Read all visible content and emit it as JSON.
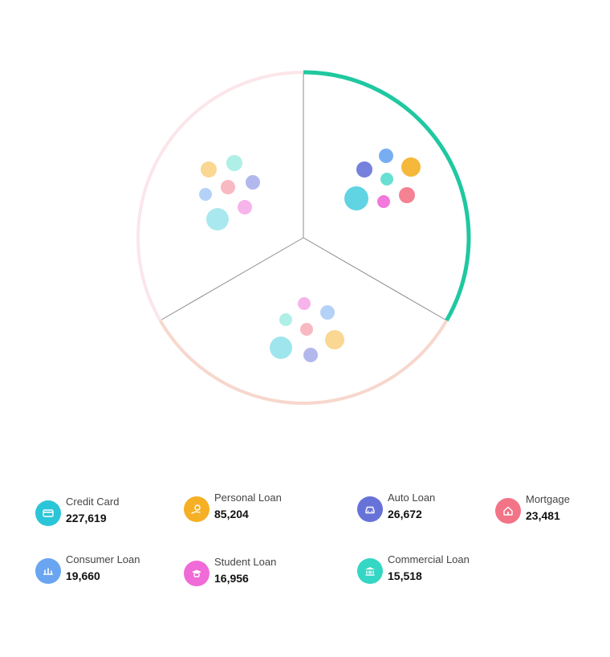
{
  "chart_data": {
    "type": "bubble-cluster",
    "series": [
      {
        "key": "credit_card",
        "name": "Credit Card",
        "value": 227619,
        "color": "#2bc5d8",
        "icon": "credit-card-icon"
      },
      {
        "key": "personal_loan",
        "name": "Personal Loan",
        "value": 85204,
        "color": "#f5b025",
        "icon": "personal-loan-icon"
      },
      {
        "key": "auto_loan",
        "name": "Auto Loan",
        "value": 26672,
        "color": "#6772d9",
        "icon": "car-icon"
      },
      {
        "key": "mortgage",
        "name": "Mortgage",
        "value": 23481,
        "color": "#f27486",
        "icon": "house-icon"
      },
      {
        "key": "consumer_loan",
        "name": "Consumer Loan",
        "value": 19660,
        "color": "#69a5f0",
        "icon": "consumer-loan-icon"
      },
      {
        "key": "student_loan",
        "name": "Student Loan",
        "value": 16956,
        "color": "#f06ad8",
        "icon": "student-icon"
      },
      {
        "key": "commercial_loan",
        "name": "Commercial Loan",
        "value": 15518,
        "color": "#34d6c4",
        "icon": "bank-icon"
      }
    ],
    "sectors": [
      {
        "arc_color": "#1fc8a0",
        "arc_opacity": 1.0,
        "bubbles": [
          {
            "series": "credit_card",
            "opacity": 0.75,
            "r": 15
          },
          {
            "series": "personal_loan",
            "opacity": 0.9,
            "r": 12
          },
          {
            "series": "auto_loan",
            "opacity": 0.9,
            "r": 10
          },
          {
            "series": "mortgage",
            "opacity": 0.9,
            "r": 10
          },
          {
            "series": "consumer_loan",
            "opacity": 0.9,
            "r": 9
          },
          {
            "series": "student_loan",
            "opacity": 0.9,
            "r": 8
          },
          {
            "series": "commercial_loan",
            "opacity": 0.75,
            "r": 8
          }
        ]
      },
      {
        "arc_color": "#f7d7cd",
        "arc_opacity": 1.0,
        "bubbles": [
          {
            "series": "credit_card",
            "opacity": 0.45,
            "r": 14
          },
          {
            "series": "personal_loan",
            "opacity": 0.5,
            "r": 12
          },
          {
            "series": "auto_loan",
            "opacity": 0.5,
            "r": 9
          },
          {
            "series": "mortgage",
            "opacity": 0.5,
            "r": 8
          },
          {
            "series": "consumer_loan",
            "opacity": 0.5,
            "r": 9
          },
          {
            "series": "student_loan",
            "opacity": 0.5,
            "r": 8
          },
          {
            "series": "commercial_loan",
            "opacity": 0.4,
            "r": 8
          }
        ]
      },
      {
        "arc_color": "#fbe6ea",
        "arc_opacity": 1.0,
        "bubbles": [
          {
            "series": "credit_card",
            "opacity": 0.4,
            "r": 14
          },
          {
            "series": "personal_loan",
            "opacity": 0.5,
            "r": 10
          },
          {
            "series": "auto_loan",
            "opacity": 0.5,
            "r": 9
          },
          {
            "series": "mortgage",
            "opacity": 0.5,
            "r": 9
          },
          {
            "series": "consumer_loan",
            "opacity": 0.5,
            "r": 8
          },
          {
            "series": "student_loan",
            "opacity": 0.5,
            "r": 9
          },
          {
            "series": "commercial_loan",
            "opacity": 0.4,
            "r": 10
          }
        ]
      }
    ]
  },
  "legend": [
    {
      "label": "Credit Card",
      "value": "227,619",
      "color": "#2bc5d8"
    },
    {
      "label": "Personal Loan",
      "value": "85,204",
      "color": "#f5b025"
    },
    {
      "label": "Auto Loan",
      "value": "26,672",
      "color": "#6772d9"
    },
    {
      "label": "Mortgage",
      "value": "23,481",
      "color": "#f27486"
    },
    {
      "label": "Consumer Loan",
      "value": "19,660",
      "color": "#69a5f0"
    },
    {
      "label": "Student Loan",
      "value": "16,956",
      "color": "#f06ad8"
    },
    {
      "label": "Commercial Loan",
      "value": "15,518",
      "color": "#34d6c4"
    }
  ]
}
